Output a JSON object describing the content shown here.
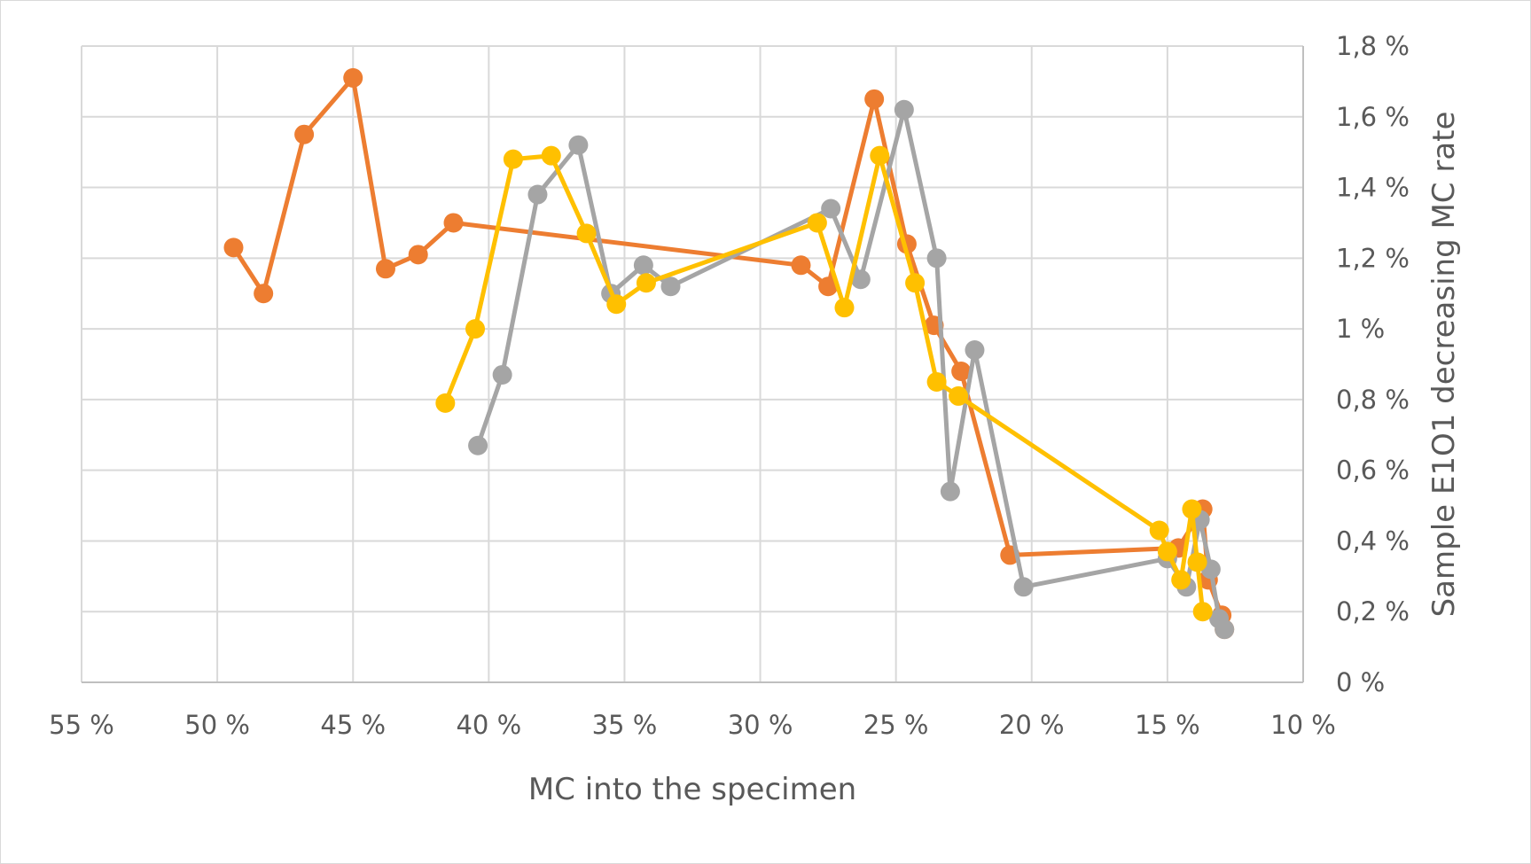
{
  "chart_data": {
    "type": "scatter",
    "xlabel": "MC into the specimen",
    "ylabel": "Sample E1O1 decreasing MC rate",
    "xlim": [
      55,
      10
    ],
    "x_reversed": true,
    "ylim": [
      0,
      1.8
    ],
    "x_ticks": [
      "55 %",
      "50 %",
      "45 %",
      "40 %",
      "35 %",
      "30 %",
      "25 %",
      "20 %",
      "15 %",
      "10 %"
    ],
    "y_ticks": [
      "0 %",
      "0,2 %",
      "0,4 %",
      "0,6 %",
      "0,8 %",
      "1 %",
      "1,2 %",
      "1,4 %",
      "1,6 %",
      "1,8 %"
    ],
    "y_axis_side": "right",
    "grid": true,
    "legend": "none",
    "series": [
      {
        "color": "#ED7D31",
        "x": [
          49.4,
          48.3,
          46.8,
          45.0,
          43.8,
          42.6,
          41.3,
          28.5,
          27.5,
          25.8,
          24.6,
          23.6,
          22.6,
          20.8,
          14.6,
          13.7,
          13.5,
          13.0,
          12.9
        ],
        "y": [
          1.23,
          1.1,
          1.55,
          1.71,
          1.17,
          1.21,
          1.3,
          1.18,
          1.12,
          1.65,
          1.24,
          1.01,
          0.88,
          0.36,
          0.38,
          0.49,
          0.29,
          0.19,
          0.15
        ]
      },
      {
        "color": "#A5A5A5",
        "x": [
          40.4,
          39.5,
          38.2,
          36.7,
          35.5,
          34.3,
          33.3,
          27.4,
          26.3,
          24.7,
          23.5,
          23.0,
          22.1,
          20.3,
          15.0,
          14.3,
          13.8,
          13.4,
          13.1,
          12.9
        ],
        "y": [
          0.67,
          0.87,
          1.38,
          1.52,
          1.1,
          1.18,
          1.12,
          1.34,
          1.14,
          1.62,
          1.2,
          0.54,
          0.94,
          0.27,
          0.35,
          0.27,
          0.46,
          0.32,
          0.18,
          0.15
        ]
      },
      {
        "color": "#FFC000",
        "x": [
          41.6,
          40.5,
          39.1,
          37.7,
          36.4,
          35.3,
          34.2,
          27.9,
          26.9,
          25.6,
          24.3,
          23.5,
          22.7,
          15.3,
          15.0,
          14.5,
          14.1,
          13.9,
          13.7
        ],
        "y": [
          0.79,
          1.0,
          1.48,
          1.49,
          1.27,
          1.07,
          1.13,
          1.3,
          1.06,
          1.49,
          1.13,
          0.85,
          0.81,
          0.43,
          0.37,
          0.29,
          0.49,
          0.34,
          0.2
        ]
      }
    ]
  }
}
